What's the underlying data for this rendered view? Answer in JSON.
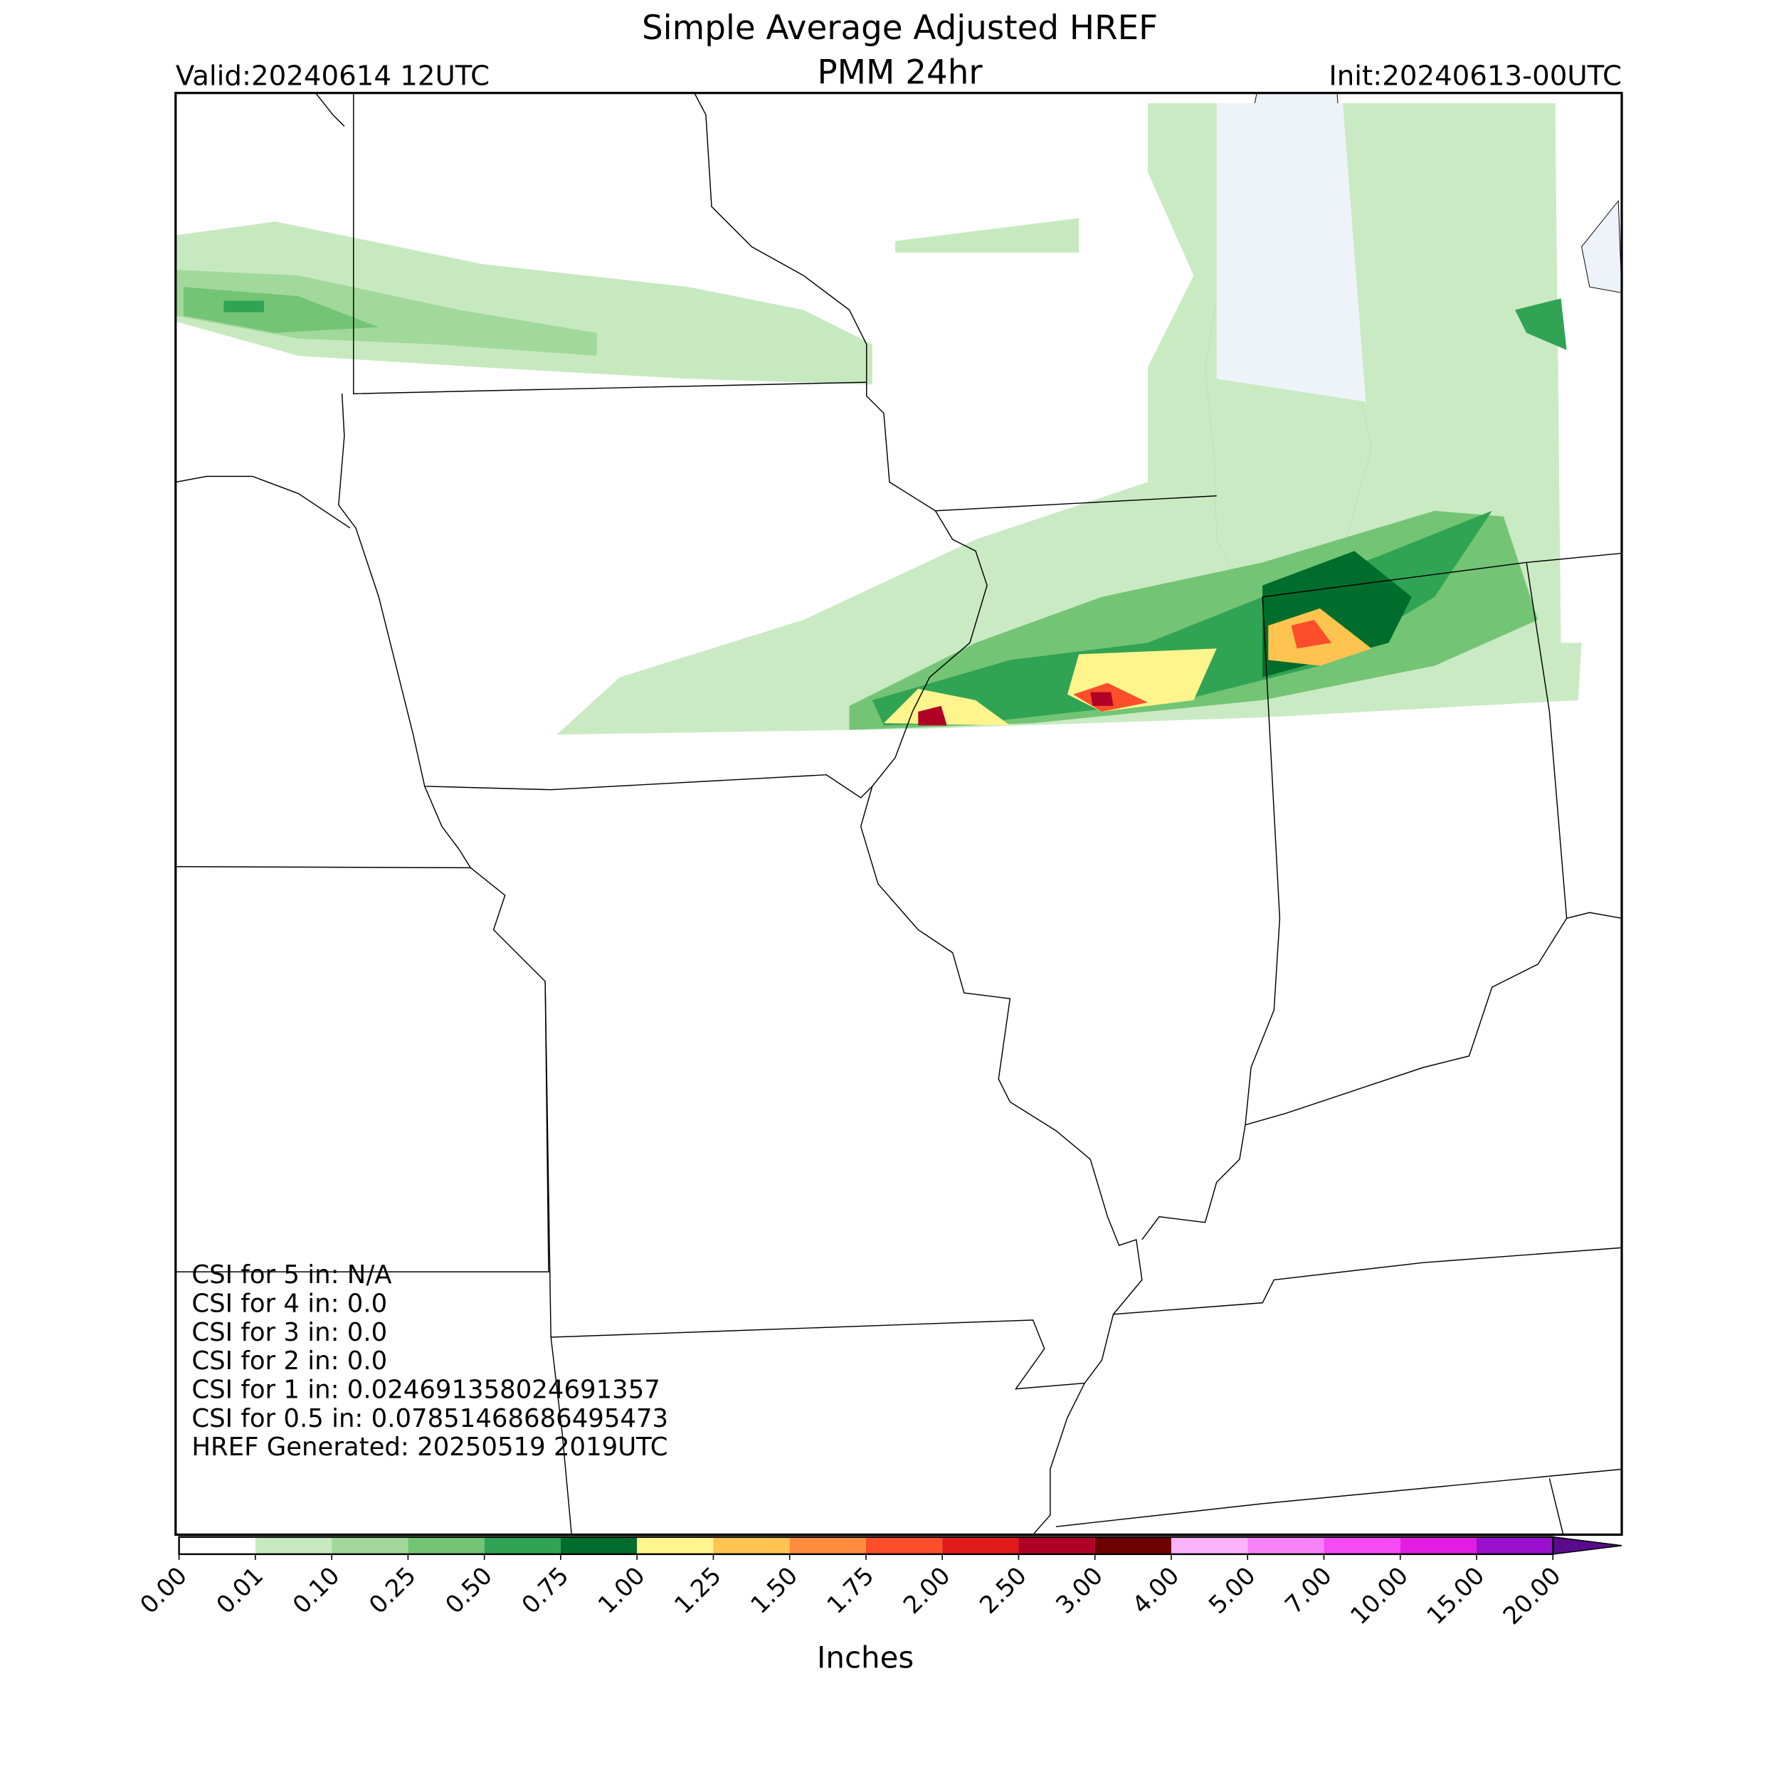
{
  "header": {
    "title_line1": "Simple Average Adjusted HREF",
    "title_line2": "PMM 24hr",
    "valid": "Valid:20240614 12UTC",
    "init": "Init:20240613-00UTC"
  },
  "stats": [
    "CSI for 5 in: N/A",
    "CSI for 4 in: 0.0",
    "CSI for 3 in: 0.0",
    "CSI for 2 in: 0.0",
    "CSI for 1 in: 0.024691358024691357",
    "CSI for 0.5 in: 0.07851468686495473",
    "HREF Generated: 20250519 2019UTC"
  ],
  "colorbar": {
    "label": "Inches",
    "ticks": [
      {
        "value": 0,
        "label": "0.00"
      },
      {
        "value": 0.01,
        "label": "0.01"
      },
      {
        "value": 0.1,
        "label": "0.10"
      },
      {
        "value": 0.25,
        "label": "0.25"
      },
      {
        "value": 0.5,
        "label": "0.50"
      },
      {
        "value": 0.75,
        "label": "0.75"
      },
      {
        "value": 1,
        "label": "1.00"
      },
      {
        "value": 1.25,
        "label": "1.25"
      },
      {
        "value": 1.5,
        "label": "1.50"
      },
      {
        "value": 1.75,
        "label": "1.75"
      },
      {
        "value": 2,
        "label": "2.00"
      },
      {
        "value": 2.5,
        "label": "2.50"
      },
      {
        "value": 3,
        "label": "3.00"
      },
      {
        "value": 4,
        "label": "4.00"
      },
      {
        "value": 5,
        "label": "5.00"
      },
      {
        "value": 7,
        "label": "7.00"
      },
      {
        "value": 10,
        "label": "10.00"
      },
      {
        "value": 15,
        "label": "15.00"
      },
      {
        "value": 20,
        "label": "20.00"
      }
    ],
    "colors": [
      "#ffffff",
      "#c7e9c0",
      "#a1d99b",
      "#74c476",
      "#31a354",
      "#006d2c",
      "#fff58c",
      "#fec44f",
      "#fd8d3c",
      "#fc4e2a",
      "#e31a1c",
      "#b10026",
      "#6e0000",
      "#fbb4fb",
      "#f782f7",
      "#f54af5",
      "#e21ce2",
      "#9b0fcf"
    ],
    "extend_color": "#5a0a8c"
  }
}
